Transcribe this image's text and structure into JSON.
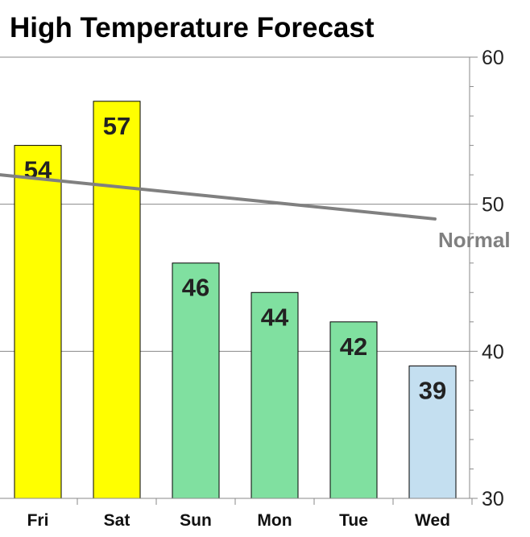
{
  "chart_data": {
    "type": "bar",
    "title": "High Temperature Forecast",
    "categories": [
      "Fri",
      "Sat",
      "Sun",
      "Mon",
      "Tue",
      "Wed"
    ],
    "values": [
      54,
      57,
      46,
      44,
      42,
      39
    ],
    "bar_colors": [
      "#ffff00",
      "#ffff00",
      "#80e0a0",
      "#80e0a0",
      "#80e0a0",
      "#c4dff0"
    ],
    "ylim": [
      30,
      60
    ],
    "yticks": [
      30,
      40,
      50,
      60
    ],
    "y_axis_side": "right",
    "grid": true,
    "normal_line": {
      "label": "Normal",
      "start": 52,
      "end": 49,
      "color": "#808080"
    }
  }
}
